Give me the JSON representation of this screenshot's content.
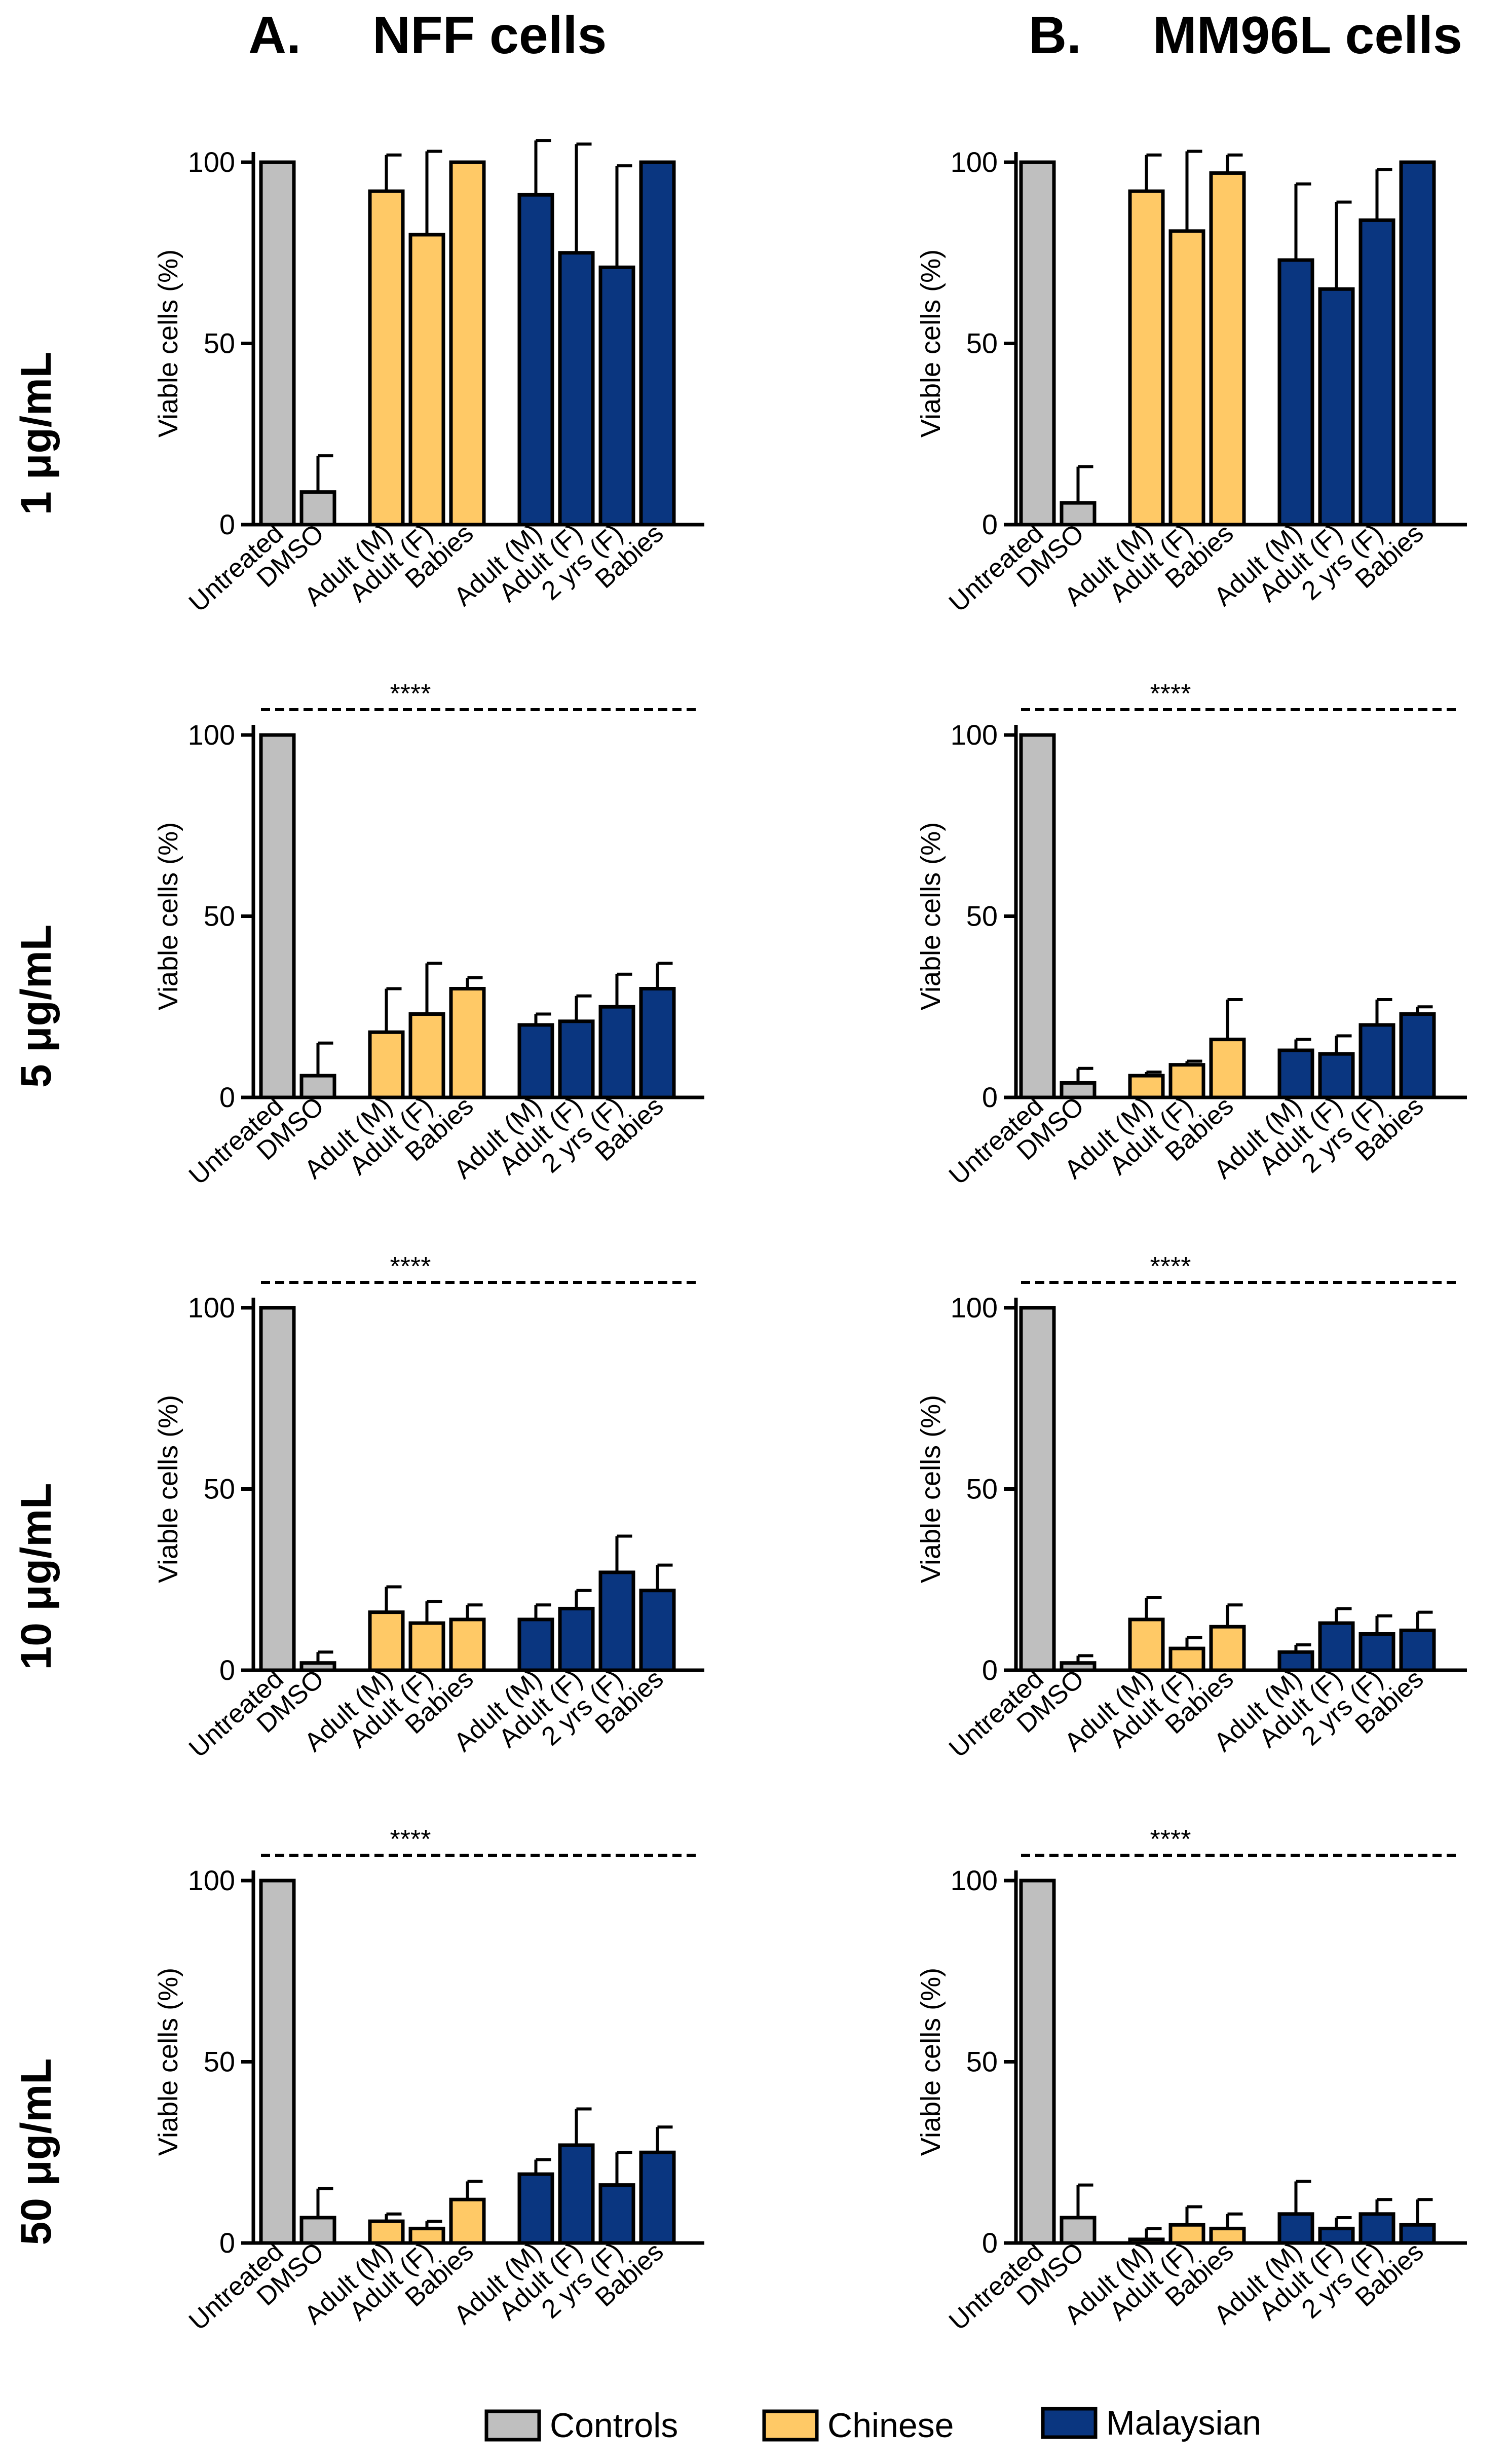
{
  "columns": [
    {
      "id": "A",
      "letter": "A.",
      "title": "NFF cells"
    },
    {
      "id": "B",
      "letter": "B.",
      "title": "MM96L cells"
    }
  ],
  "rows": [
    {
      "id": "r1",
      "label": "1 μg/mL"
    },
    {
      "id": "r5",
      "label": "5 μg/mL"
    },
    {
      "id": "r10",
      "label": "10 μg/mL"
    },
    {
      "id": "r50",
      "label": "50 μg/mL"
    }
  ],
  "ylabel": "Viable cells (%)",
  "yticks": [
    0,
    50,
    100
  ],
  "significance_label": "****",
  "categories": [
    "Untreated",
    "DMSO",
    "Adult (M)",
    "Adult (F)",
    "Babies",
    "Adult (M)",
    "Adult (F)",
    "2 yrs (F)",
    "Babies"
  ],
  "groups": [
    "Controls",
    "Controls",
    "Chinese",
    "Chinese",
    "Chinese",
    "Malaysian",
    "Malaysian",
    "Malaysian",
    "Malaysian"
  ],
  "colors": {
    "Controls": "#bfbfbf",
    "Chinese": "#ffc966",
    "Malaysian": "#0a3680"
  },
  "legend": [
    {
      "name": "Controls",
      "color": "#bfbfbf"
    },
    {
      "name": "Chinese",
      "color": "#ffc966"
    },
    {
      "name": "Malaysian",
      "color": "#0a3680"
    }
  ],
  "chart_data": [
    {
      "type": "bar",
      "panel": "NFF cells",
      "concentration": "1 μg/mL",
      "ylim": [
        0,
        100
      ],
      "significance": false,
      "values": [
        100,
        9,
        92,
        80,
        100,
        91,
        75,
        71,
        100
      ],
      "errors": [
        0,
        10,
        10,
        23,
        0,
        15,
        30,
        28,
        0
      ]
    },
    {
      "type": "bar",
      "panel": "MM96L cells",
      "concentration": "1 μg/mL",
      "ylim": [
        0,
        100
      ],
      "significance": false,
      "values": [
        100,
        6,
        92,
        81,
        97,
        73,
        65,
        84,
        100
      ],
      "errors": [
        0,
        10,
        10,
        22,
        5,
        21,
        24,
        14,
        0
      ]
    },
    {
      "type": "bar",
      "panel": "NFF cells",
      "concentration": "5 μg/mL",
      "ylim": [
        0,
        100
      ],
      "significance": true,
      "values": [
        100,
        6,
        18,
        23,
        30,
        20,
        21,
        25,
        30
      ],
      "errors": [
        0,
        9,
        12,
        14,
        3,
        3,
        7,
        9,
        7
      ]
    },
    {
      "type": "bar",
      "panel": "MM96L cells",
      "concentration": "5 μg/mL",
      "ylim": [
        0,
        100
      ],
      "significance": true,
      "values": [
        100,
        4,
        6,
        9,
        16,
        13,
        12,
        20,
        23
      ],
      "errors": [
        0,
        4,
        1,
        1,
        11,
        3,
        5,
        7,
        2
      ]
    },
    {
      "type": "bar",
      "panel": "NFF cells",
      "concentration": "10 μg/mL",
      "ylim": [
        0,
        100
      ],
      "significance": true,
      "values": [
        100,
        2,
        16,
        13,
        14,
        14,
        17,
        27,
        22
      ],
      "errors": [
        0,
        3,
        7,
        6,
        4,
        4,
        5,
        10,
        7
      ]
    },
    {
      "type": "bar",
      "panel": "MM96L cells",
      "concentration": "10 μg/mL",
      "ylim": [
        0,
        100
      ],
      "significance": true,
      "values": [
        100,
        2,
        14,
        6,
        12,
        5,
        13,
        10,
        11
      ],
      "errors": [
        0,
        2,
        6,
        3,
        6,
        2,
        4,
        5,
        5
      ]
    },
    {
      "type": "bar",
      "panel": "NFF cells",
      "concentration": "50 μg/mL",
      "ylim": [
        0,
        100
      ],
      "significance": true,
      "values": [
        100,
        7,
        6,
        4,
        12,
        19,
        27,
        16,
        25
      ],
      "errors": [
        0,
        8,
        2,
        2,
        5,
        4,
        10,
        9,
        7
      ]
    },
    {
      "type": "bar",
      "panel": "MM96L cells",
      "concentration": "50 μg/mL",
      "ylim": [
        0,
        100
      ],
      "significance": true,
      "values": [
        100,
        7,
        1,
        5,
        4,
        8,
        4,
        8,
        5
      ],
      "errors": [
        0,
        9,
        3,
        5,
        4,
        9,
        3,
        4,
        7
      ]
    }
  ]
}
